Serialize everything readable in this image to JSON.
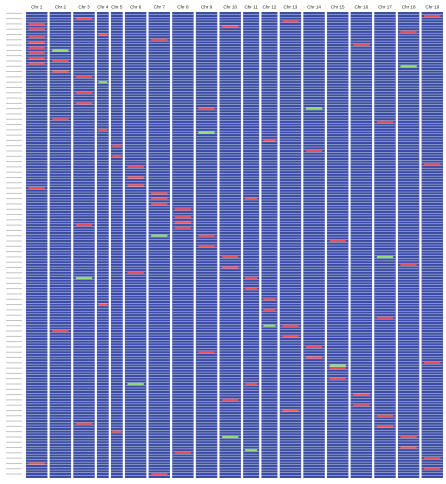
{
  "chart_data": {
    "type": "heatmap",
    "title": "",
    "xlabel": "",
    "ylabel": "",
    "columns": [
      "Chr 1",
      "Chr 2",
      "Chr 3",
      "Chr 4",
      "Chr 5",
      "Chr 6",
      "Chr 7",
      "Chr 8",
      "Chr 9",
      "Chr 10",
      "Chr 11",
      "Chr 12",
      "Chr 13",
      "Chr 14",
      "Chr 15",
      "Chr 16",
      "Chr 17",
      "Chr 18",
      "Chr 19"
    ],
    "row_count": 176,
    "colors": {
      "background": "#3d4da6",
      "row_line": "#dfe5f5",
      "red": "#e8505c",
      "green": "#8fdc72",
      "gap": "#ffffff"
    },
    "red_segments": [
      {
        "col": 0,
        "row": 4
      },
      {
        "col": 0,
        "row": 6
      },
      {
        "col": 0,
        "row": 9
      },
      {
        "col": 0,
        "row": 11
      },
      {
        "col": 0,
        "row": 13
      },
      {
        "col": 0,
        "row": 15
      },
      {
        "col": 0,
        "row": 17
      },
      {
        "col": 0,
        "row": 19
      },
      {
        "col": 1,
        "row": 18
      },
      {
        "col": 1,
        "row": 22
      },
      {
        "col": 2,
        "row": 24
      },
      {
        "col": 2,
        "row": 30
      },
      {
        "col": 2,
        "row": 34
      },
      {
        "col": 4,
        "row": 50
      },
      {
        "col": 4,
        "row": 54
      },
      {
        "col": 5,
        "row": 58
      },
      {
        "col": 5,
        "row": 62
      },
      {
        "col": 5,
        "row": 65
      },
      {
        "col": 6,
        "row": 68
      },
      {
        "col": 6,
        "row": 70
      },
      {
        "col": 6,
        "row": 72
      },
      {
        "col": 7,
        "row": 74
      },
      {
        "col": 7,
        "row": 77
      },
      {
        "col": 7,
        "row": 79
      },
      {
        "col": 7,
        "row": 81
      },
      {
        "col": 8,
        "row": 84
      },
      {
        "col": 8,
        "row": 88
      },
      {
        "col": 9,
        "row": 92
      },
      {
        "col": 9,
        "row": 96
      },
      {
        "col": 10,
        "row": 100
      },
      {
        "col": 10,
        "row": 104
      },
      {
        "col": 11,
        "row": 108
      },
      {
        "col": 11,
        "row": 112
      },
      {
        "col": 12,
        "row": 118
      },
      {
        "col": 12,
        "row": 122
      },
      {
        "col": 13,
        "row": 126
      },
      {
        "col": 13,
        "row": 130
      },
      {
        "col": 14,
        "row": 134
      },
      {
        "col": 14,
        "row": 138
      },
      {
        "col": 15,
        "row": 144
      },
      {
        "col": 15,
        "row": 148
      },
      {
        "col": 16,
        "row": 152
      },
      {
        "col": 16,
        "row": 156
      },
      {
        "col": 17,
        "row": 160
      },
      {
        "col": 17,
        "row": 164
      },
      {
        "col": 18,
        "row": 168
      },
      {
        "col": 18,
        "row": 172
      },
      {
        "col": 2,
        "row": 2
      },
      {
        "col": 3,
        "row": 8
      },
      {
        "col": 6,
        "row": 10
      },
      {
        "col": 9,
        "row": 5
      },
      {
        "col": 12,
        "row": 3
      },
      {
        "col": 15,
        "row": 12
      },
      {
        "col": 17,
        "row": 7
      },
      {
        "col": 18,
        "row": 1
      },
      {
        "col": 1,
        "row": 40
      },
      {
        "col": 3,
        "row": 44
      },
      {
        "col": 8,
        "row": 36
      },
      {
        "col": 11,
        "row": 48
      },
      {
        "col": 13,
        "row": 52
      },
      {
        "col": 16,
        "row": 41
      },
      {
        "col": 18,
        "row": 57
      },
      {
        "col": 0,
        "row": 66
      },
      {
        "col": 2,
        "row": 80
      },
      {
        "col": 10,
        "row": 70
      },
      {
        "col": 14,
        "row": 86
      },
      {
        "col": 17,
        "row": 95
      },
      {
        "col": 5,
        "row": 98
      },
      {
        "col": 3,
        "row": 110
      },
      {
        "col": 1,
        "row": 120
      },
      {
        "col": 8,
        "row": 128
      },
      {
        "col": 10,
        "row": 140
      },
      {
        "col": 12,
        "row": 150
      },
      {
        "col": 4,
        "row": 158
      },
      {
        "col": 7,
        "row": 166
      },
      {
        "col": 0,
        "row": 170
      },
      {
        "col": 16,
        "row": 115
      },
      {
        "col": 18,
        "row": 132
      },
      {
        "col": 9,
        "row": 146
      },
      {
        "col": 2,
        "row": 155
      },
      {
        "col": 6,
        "row": 174
      }
    ],
    "green_segments": [
      {
        "col": 1,
        "row": 14
      },
      {
        "col": 3,
        "row": 26
      },
      {
        "col": 8,
        "row": 45
      },
      {
        "col": 6,
        "row": 84
      },
      {
        "col": 2,
        "row": 100
      },
      {
        "col": 11,
        "row": 118
      },
      {
        "col": 14,
        "row": 133
      },
      {
        "col": 9,
        "row": 160
      },
      {
        "col": 17,
        "row": 20
      },
      {
        "col": 13,
        "row": 36
      },
      {
        "col": 16,
        "row": 92
      },
      {
        "col": 5,
        "row": 140
      },
      {
        "col": 10,
        "row": 165
      }
    ]
  }
}
